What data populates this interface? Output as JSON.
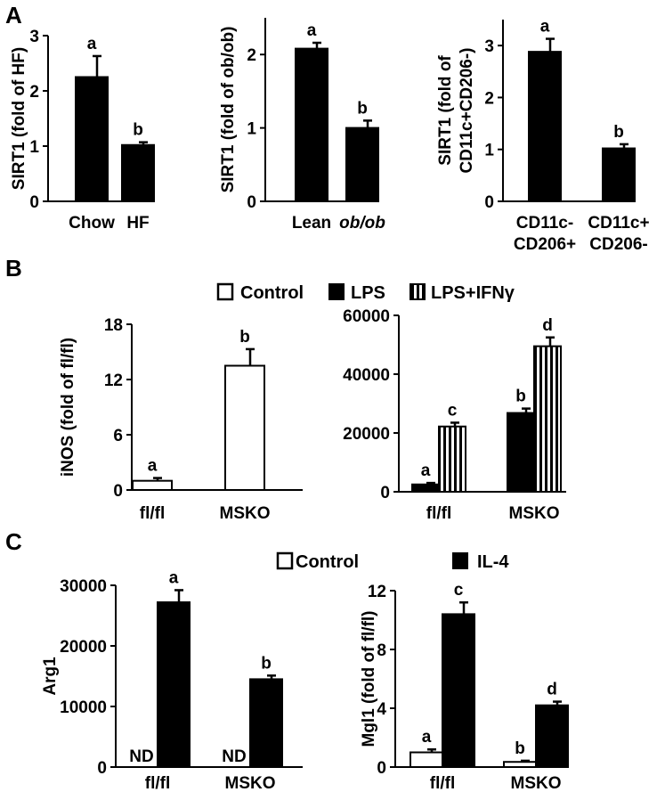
{
  "panels": {
    "A": {
      "label": "A"
    },
    "B": {
      "label": "B"
    },
    "C": {
      "label": "C"
    }
  },
  "legends": {
    "B": [
      {
        "label": "Control",
        "style": "open"
      },
      {
        "label": "LPS",
        "style": "solid"
      },
      {
        "label": "LPS+IFNγ",
        "style": "striped"
      }
    ],
    "C": [
      {
        "label": "Control",
        "style": "open"
      },
      {
        "label": "IL-4",
        "style": "solid"
      }
    ]
  },
  "colors": {
    "bar_solid": "#000000",
    "bar_open": "#ffffff",
    "axis": "#000000"
  },
  "chart_data": [
    {
      "id": "A1",
      "panel": "A",
      "type": "bar",
      "ylabel": "SIRT1 (fold of HF)",
      "ylim": [
        0,
        3
      ],
      "yticks": [
        "0",
        "1",
        "2",
        "3"
      ],
      "categories": [
        "Chow",
        "HF"
      ],
      "series": [
        {
          "style": "solid",
          "values": [
            2.25,
            1.02
          ],
          "errors": [
            0.38,
            0.05
          ]
        }
      ],
      "annotations": [
        [
          "a",
          "b"
        ]
      ]
    },
    {
      "id": "A2",
      "panel": "A",
      "type": "bar",
      "ylabel": "SIRT1 (fold of ob/ob)",
      "ylim": [
        0,
        2.5
      ],
      "yticks": [
        "0",
        "1",
        "2"
      ],
      "categories": [
        "Lean",
        "ob/ob"
      ],
      "series": [
        {
          "style": "solid",
          "values": [
            2.08,
            1.0
          ],
          "errors": [
            0.08,
            0.1
          ]
        }
      ],
      "annotations": [
        [
          "a",
          "b"
        ]
      ]
    },
    {
      "id": "A3",
      "panel": "A",
      "type": "bar",
      "ylabel": "SIRT1 (fold of CD11c+CD206-)",
      "ylim": [
        0,
        3.5
      ],
      "yticks": [
        "0",
        "1",
        "2",
        "3"
      ],
      "categories": [
        "CD11c- CD206+",
        "CD11c+ CD206-"
      ],
      "series": [
        {
          "style": "solid",
          "values": [
            2.88,
            1.02
          ],
          "errors": [
            0.25,
            0.08
          ]
        }
      ],
      "annotations": [
        [
          "a",
          "b"
        ]
      ]
    },
    {
      "id": "B1",
      "panel": "B",
      "type": "bar",
      "ylabel": "iNOS (fold of fl/fl)",
      "ylim": [
        0,
        18
      ],
      "yticks": [
        "0",
        "6",
        "12",
        "18"
      ],
      "categories": [
        "fl/fl",
        "MSKO"
      ],
      "series": [
        {
          "name": "Control",
          "style": "open",
          "values": [
            1.0,
            13.5
          ],
          "errors": [
            0.3,
            1.8
          ]
        }
      ],
      "annotations": [
        [
          "a",
          "b"
        ]
      ]
    },
    {
      "id": "B2",
      "panel": "B",
      "type": "bar",
      "ylabel": "",
      "ylim": [
        0,
        60000
      ],
      "yticks": [
        "0",
        "20000",
        "40000",
        "60000"
      ],
      "categories": [
        "fl/fl",
        "MSKO"
      ],
      "series": [
        {
          "name": "LPS",
          "style": "solid",
          "values": [
            2500,
            26800
          ],
          "errors": [
            500,
            1500
          ]
        },
        {
          "name": "LPS+IFNγ",
          "style": "striped",
          "values": [
            22200,
            49500
          ],
          "errors": [
            1300,
            3000
          ]
        }
      ],
      "annotations": [
        [
          "a",
          "b"
        ],
        [
          "c",
          "d"
        ]
      ]
    },
    {
      "id": "C1",
      "panel": "C",
      "type": "bar",
      "ylabel": "Arg1",
      "ylim": [
        0,
        30000
      ],
      "yticks": [
        "0",
        "10000",
        "20000",
        "30000"
      ],
      "categories": [
        "fl/fl",
        "MSKO"
      ],
      "series": [
        {
          "name": "Control",
          "style": "open",
          "values": [
            null,
            null
          ],
          "errors": [
            null,
            null
          ],
          "text": [
            "ND",
            "ND"
          ]
        },
        {
          "name": "IL-4",
          "style": "solid",
          "values": [
            27200,
            14500
          ],
          "errors": [
            2000,
            600
          ]
        }
      ],
      "annotations": [
        [
          "",
          ""
        ],
        [
          "a",
          "b"
        ]
      ]
    },
    {
      "id": "C2",
      "panel": "C",
      "type": "bar",
      "ylabel": "Mgl1 (fold of fl/fl)",
      "ylim": [
        0,
        12
      ],
      "yticks": [
        "0",
        "4",
        "8",
        "12"
      ],
      "categories": [
        "fl/fl",
        "MSKO"
      ],
      "series": [
        {
          "name": "Control",
          "style": "open",
          "values": [
            1.0,
            0.35
          ],
          "errors": [
            0.2,
            0.08
          ]
        },
        {
          "name": "IL-4",
          "style": "solid",
          "values": [
            10.4,
            4.2
          ],
          "errors": [
            0.8,
            0.25
          ]
        }
      ],
      "annotations": [
        [
          "a",
          "b"
        ],
        [
          "c",
          "d"
        ]
      ]
    }
  ]
}
